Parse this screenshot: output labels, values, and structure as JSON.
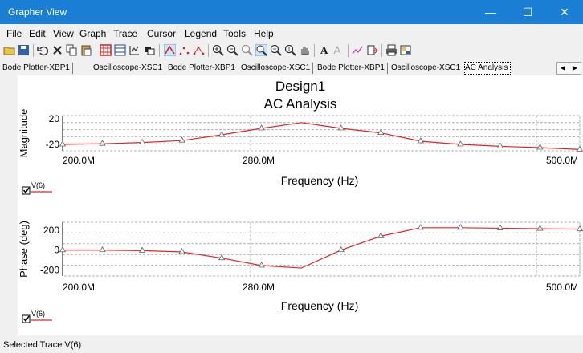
{
  "window": {
    "title": "Grapher View",
    "minimize": "—",
    "maximize": "☐",
    "close": "✕"
  },
  "menu": [
    "File",
    "Edit",
    "View",
    "Graph",
    "Trace",
    "Cursor",
    "Legend",
    "Tools",
    "Help"
  ],
  "toolbar_icons": [
    "open-icon",
    "save-icon",
    "undo-icon",
    "delete-icon",
    "copy-icon",
    "paste-icon",
    "grid-icon",
    "minor-grid-icon",
    "legend-icon",
    "cursors-icon",
    "line-plot-icon",
    "dots-plot-icon",
    "line-dots-plot-icon",
    "zoom-in-icon",
    "zoom-out-icon",
    "zoom-area-icon",
    "zoom-full-icon",
    "zoom-x-icon",
    "zoom-y-icon",
    "pan-icon",
    "text-icon",
    "font-icon",
    "trace-icon",
    "export-icon",
    "print-icon",
    "properties-icon"
  ],
  "tabs": [
    "Bode Plotter-XBP1",
    "Oscilloscope-XSC1",
    "Bode Plotter-XBP1",
    "Oscilloscope-XSC1",
    "Bode Plotter-XBP1",
    "Oscilloscope-XSC1",
    "AC Analysis"
  ],
  "colors": {
    "trace": "#e8202a",
    "titlebar": "#1a7fd4",
    "grid": "#b0b0b0"
  },
  "graph": {
    "title": "Design1",
    "subtitle": "AC Analysis"
  },
  "chart_data": [
    {
      "type": "line",
      "ylabel": "Magnitude",
      "xlabel": "Frequency (Hz)",
      "x_ticks": [
        "200.0M",
        "280.0M",
        "500.0M"
      ],
      "y_ticks": [
        "20",
        "-20"
      ],
      "legend": "V(6)",
      "series": [
        {
          "name": "V(6)",
          "values": [
            -20,
            -19,
            -17,
            -14,
            -5,
            5,
            14,
            5,
            -2,
            -15,
            -20,
            -23,
            -25,
            -28
          ]
        }
      ]
    },
    {
      "type": "line",
      "ylabel": "Phase (deg)",
      "xlabel": "Frequency (Hz)",
      "x_ticks": [
        "200.0M",
        "280.0M",
        "500.0M"
      ],
      "y_ticks": [
        "200",
        "0",
        "-200"
      ],
      "legend": "V(6)",
      "series": [
        {
          "name": "V(6)",
          "values": [
            0,
            0,
            -5,
            -18,
            -80,
            -155,
            -180,
            0,
            140,
            225,
            225,
            220,
            215,
            210
          ]
        }
      ]
    }
  ],
  "status": "Selected Trace:V(6)"
}
